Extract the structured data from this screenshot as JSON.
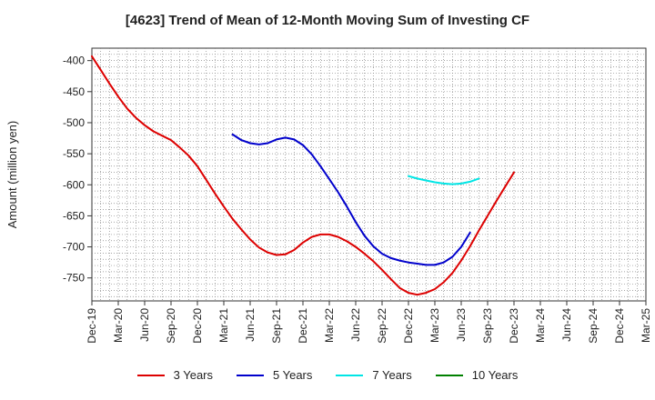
{
  "chart_data": {
    "type": "line",
    "title": "[4623]  Trend of Mean of 12-Month Moving Sum of Investing CF",
    "xlabel": "",
    "ylabel": "Amount (million yen)",
    "ylim": [
      -787,
      -380
    ],
    "yticks": [
      -400,
      -450,
      -500,
      -550,
      -600,
      -650,
      -700,
      -750
    ],
    "x_tick_labels": [
      "Dec-19",
      "Mar-20",
      "Jun-20",
      "Sep-20",
      "Dec-20",
      "Mar-21",
      "Jun-21",
      "Sep-21",
      "Dec-21",
      "Mar-22",
      "Jun-22",
      "Sep-22",
      "Dec-22",
      "Mar-23",
      "Jun-23",
      "Sep-23",
      "Dec-23",
      "Mar-24",
      "Jun-24",
      "Sep-24",
      "Dec-24",
      "Mar-25"
    ],
    "x_index_range": [
      0,
      63
    ],
    "grid": true,
    "legend_position": "bottom",
    "series": [
      {
        "name": "3 Years",
        "color": "#dd0000",
        "points": [
          [
            0,
            -393
          ],
          [
            1,
            -415
          ],
          [
            2,
            -437
          ],
          [
            3,
            -458
          ],
          [
            4,
            -477
          ],
          [
            5,
            -492
          ],
          [
            6,
            -504
          ],
          [
            7,
            -514
          ],
          [
            8,
            -521
          ],
          [
            9,
            -528
          ],
          [
            10,
            -540
          ],
          [
            11,
            -553
          ],
          [
            12,
            -570
          ],
          [
            13,
            -592
          ],
          [
            14,
            -614
          ],
          [
            15,
            -635
          ],
          [
            16,
            -655
          ],
          [
            17,
            -672
          ],
          [
            18,
            -688
          ],
          [
            19,
            -701
          ],
          [
            20,
            -709
          ],
          [
            21,
            -713
          ],
          [
            22,
            -712
          ],
          [
            23,
            -705
          ],
          [
            24,
            -693
          ],
          [
            25,
            -684
          ],
          [
            26,
            -680
          ],
          [
            27,
            -680
          ],
          [
            28,
            -684
          ],
          [
            29,
            -691
          ],
          [
            30,
            -700
          ],
          [
            31,
            -711
          ],
          [
            32,
            -723
          ],
          [
            33,
            -737
          ],
          [
            34,
            -752
          ],
          [
            35,
            -766
          ],
          [
            36,
            -774
          ],
          [
            37,
            -777
          ],
          [
            38,
            -774
          ],
          [
            39,
            -768
          ],
          [
            40,
            -757
          ],
          [
            41,
            -742
          ],
          [
            42,
            -722
          ],
          [
            43,
            -699
          ],
          [
            44,
            -674
          ],
          [
            45,
            -650
          ],
          [
            46,
            -626
          ],
          [
            47,
            -603
          ],
          [
            48,
            -580
          ]
        ]
      },
      {
        "name": "5 Years",
        "color": "#0000cc",
        "points": [
          [
            16,
            -519
          ],
          [
            17,
            -528
          ],
          [
            18,
            -533
          ],
          [
            19,
            -535
          ],
          [
            20,
            -533
          ],
          [
            21,
            -527
          ],
          [
            22,
            -524
          ],
          [
            23,
            -527
          ],
          [
            24,
            -536
          ],
          [
            25,
            -551
          ],
          [
            26,
            -570
          ],
          [
            27,
            -591
          ],
          [
            28,
            -612
          ],
          [
            29,
            -635
          ],
          [
            30,
            -660
          ],
          [
            31,
            -682
          ],
          [
            32,
            -699
          ],
          [
            33,
            -711
          ],
          [
            34,
            -718
          ],
          [
            35,
            -722
          ],
          [
            36,
            -725
          ],
          [
            37,
            -727
          ],
          [
            38,
            -729
          ],
          [
            39,
            -729
          ],
          [
            40,
            -725
          ],
          [
            41,
            -716
          ],
          [
            42,
            -700
          ],
          [
            43,
            -677
          ]
        ]
      },
      {
        "name": "7 Years",
        "color": "#00e5e5",
        "points": [
          [
            36,
            -586
          ],
          [
            37,
            -590
          ],
          [
            38,
            -593
          ],
          [
            39,
            -596
          ],
          [
            40,
            -598
          ],
          [
            41,
            -599
          ],
          [
            42,
            -598
          ],
          [
            43,
            -595
          ],
          [
            44,
            -590
          ]
        ]
      },
      {
        "name": "10 Years",
        "color": "#008000",
        "points": []
      }
    ]
  }
}
